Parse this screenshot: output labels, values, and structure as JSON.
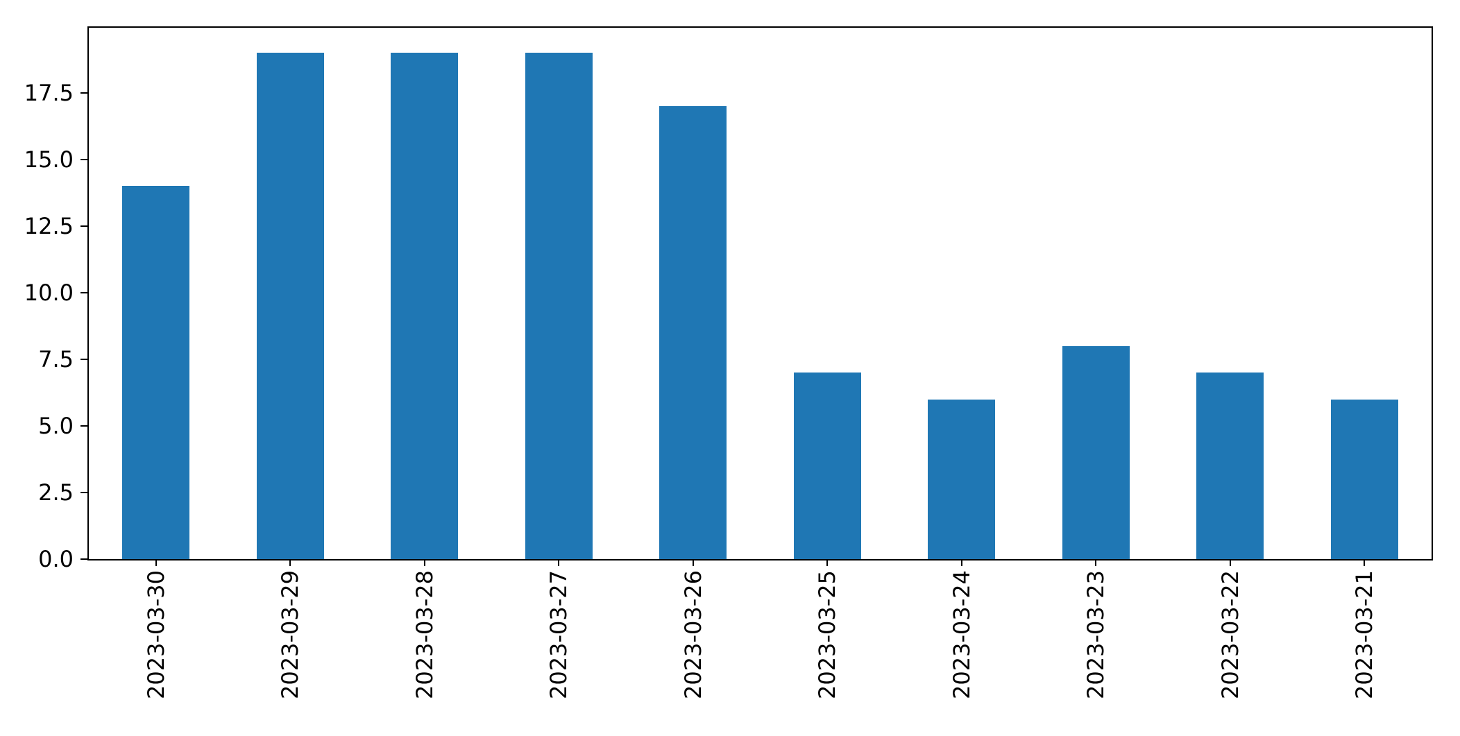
{
  "chart_data": {
    "type": "bar",
    "categories": [
      "2023-03-30",
      "2023-03-29",
      "2023-03-28",
      "2023-03-27",
      "2023-03-26",
      "2023-03-25",
      "2023-03-24",
      "2023-03-23",
      "2023-03-22",
      "2023-03-21"
    ],
    "values": [
      14,
      19,
      19,
      19,
      17,
      7,
      6,
      8,
      7,
      6
    ],
    "title": "",
    "xlabel": "",
    "ylabel": "",
    "ylim": [
      0,
      19.95
    ],
    "yticks": [
      "0.0",
      "2.5",
      "5.0",
      "7.5",
      "10.0",
      "12.5",
      "15.0",
      "17.5"
    ],
    "grid": false,
    "legend": false,
    "bar_rel_width": 0.5,
    "bar_color": "#1f77b4",
    "axis_color": "#000000",
    "background_color": "#ffffff"
  }
}
